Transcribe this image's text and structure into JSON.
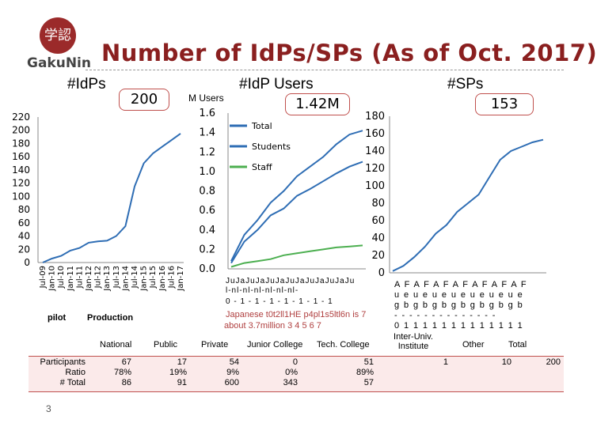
{
  "logo": {
    "kanji": "学認",
    "text": "GakuNin"
  },
  "title": "Number of IdPs/SPs (As of Oct. 2017)",
  "colors": {
    "line": "#2e6db4",
    "staff": "#4caf50",
    "title": "#8a1f1f",
    "callout_border": "#c0504d"
  },
  "idps": {
    "heading": "#IdPs",
    "callout": "200",
    "phase_pilot": "pilot",
    "phase_production": "Production"
  },
  "users": {
    "heading": "#IdP Users",
    "unit": "M Users",
    "callout": "1.42M",
    "legend": [
      "Total",
      "Students",
      "Staff"
    ],
    "xaxis_garbled_1": "JuJaJuJaJuJaJuJaJuJaJuJaJu",
    "xaxis_garbled_2": "l-nl-nl-nl-nl-nl-nl-",
    "xaxis_garbled_3": "0 - 1 - 1 - 1 - 1 - 1 - 1 - 1",
    "xaxis_garbled_4": "Japanese t0t2ll1HE p4pl1s5ltl6n is 7",
    "xaxis_garbled_5": "about 3.7million 3   4   5   6   7"
  },
  "sps": {
    "heading": "#SPs",
    "callout": "153",
    "xaxis_row1": "A F A F A F A F A F A F A F",
    "xaxis_row2": "u e u e u e u e u e u e u e",
    "xaxis_row3": "g b g b g b g b g b g b g b",
    "xaxis_row4": "- - - - - - - - - - - - - -",
    "xaxis_row5": "0 1 1 1 1 1 1 1 1 1 1 1 1 1"
  },
  "chart_data": [
    {
      "type": "line",
      "title": "#IdPs",
      "categories": [
        "Jul-09",
        "Jan-10",
        "Jul-10",
        "Jan-11",
        "Jul-11",
        "Jan-12",
        "Jul-12",
        "Jan-13",
        "Jul-13",
        "Jan-14",
        "Jul-14",
        "Jan-15",
        "Jul-15",
        "Jan-16",
        "Jul-16",
        "Jan-17"
      ],
      "values": [
        0,
        6,
        10,
        18,
        22,
        30,
        32,
        33,
        40,
        55,
        115,
        150,
        165,
        175,
        185,
        195
      ],
      "ylim": [
        0,
        220
      ],
      "yticks": [
        "0",
        "20",
        "40",
        "60",
        "80",
        "100",
        "120",
        "140",
        "160",
        "180",
        "200",
        "220"
      ]
    },
    {
      "type": "line",
      "title": "#IdP Users",
      "ylabel": "M Users",
      "ylim": [
        0,
        1.6
      ],
      "yticks": [
        "0.0",
        "0.2",
        "0.4",
        "0.6",
        "0.8",
        "1.0",
        "1.2",
        "1.4",
        "1.6"
      ],
      "series": [
        {
          "name": "Total",
          "values": [
            0.08,
            0.35,
            0.5,
            0.68,
            0.8,
            0.95,
            1.05,
            1.15,
            1.28,
            1.38,
            1.42
          ]
        },
        {
          "name": "Students",
          "values": [
            0.06,
            0.28,
            0.4,
            0.55,
            0.62,
            0.75,
            0.82,
            0.9,
            0.98,
            1.05,
            1.1
          ]
        },
        {
          "name": "Staff",
          "values": [
            0.02,
            0.06,
            0.08,
            0.1,
            0.14,
            0.16,
            0.18,
            0.2,
            0.22,
            0.23,
            0.24
          ]
        }
      ]
    },
    {
      "type": "line",
      "title": "#SPs",
      "ylim": [
        0,
        180
      ],
      "yticks": [
        "0",
        "20",
        "40",
        "60",
        "80",
        "100",
        "120",
        "140",
        "160",
        "180"
      ],
      "values": [
        2,
        8,
        18,
        30,
        45,
        55,
        70,
        80,
        90,
        110,
        130,
        140,
        145,
        150,
        153
      ]
    },
    {
      "type": "table",
      "columns": [
        "",
        "National",
        "Public",
        "Private",
        "Junior College",
        "Tech. College",
        "Inter-Univ. Institute",
        "Other",
        "Total"
      ],
      "rows": [
        {
          "label": "Participants",
          "cells": [
            "67",
            "17",
            "54",
            "0",
            "51",
            "1",
            "10",
            "200"
          ]
        },
        {
          "label": "Ratio",
          "cells": [
            "78%",
            "19%",
            "9%",
            "0%",
            "89%",
            "",
            "",
            ""
          ]
        },
        {
          "label": "# Total",
          "cells": [
            "86",
            "91",
            "600",
            "343",
            "57",
            "",
            "",
            ""
          ]
        }
      ]
    }
  ],
  "page_number": "3"
}
